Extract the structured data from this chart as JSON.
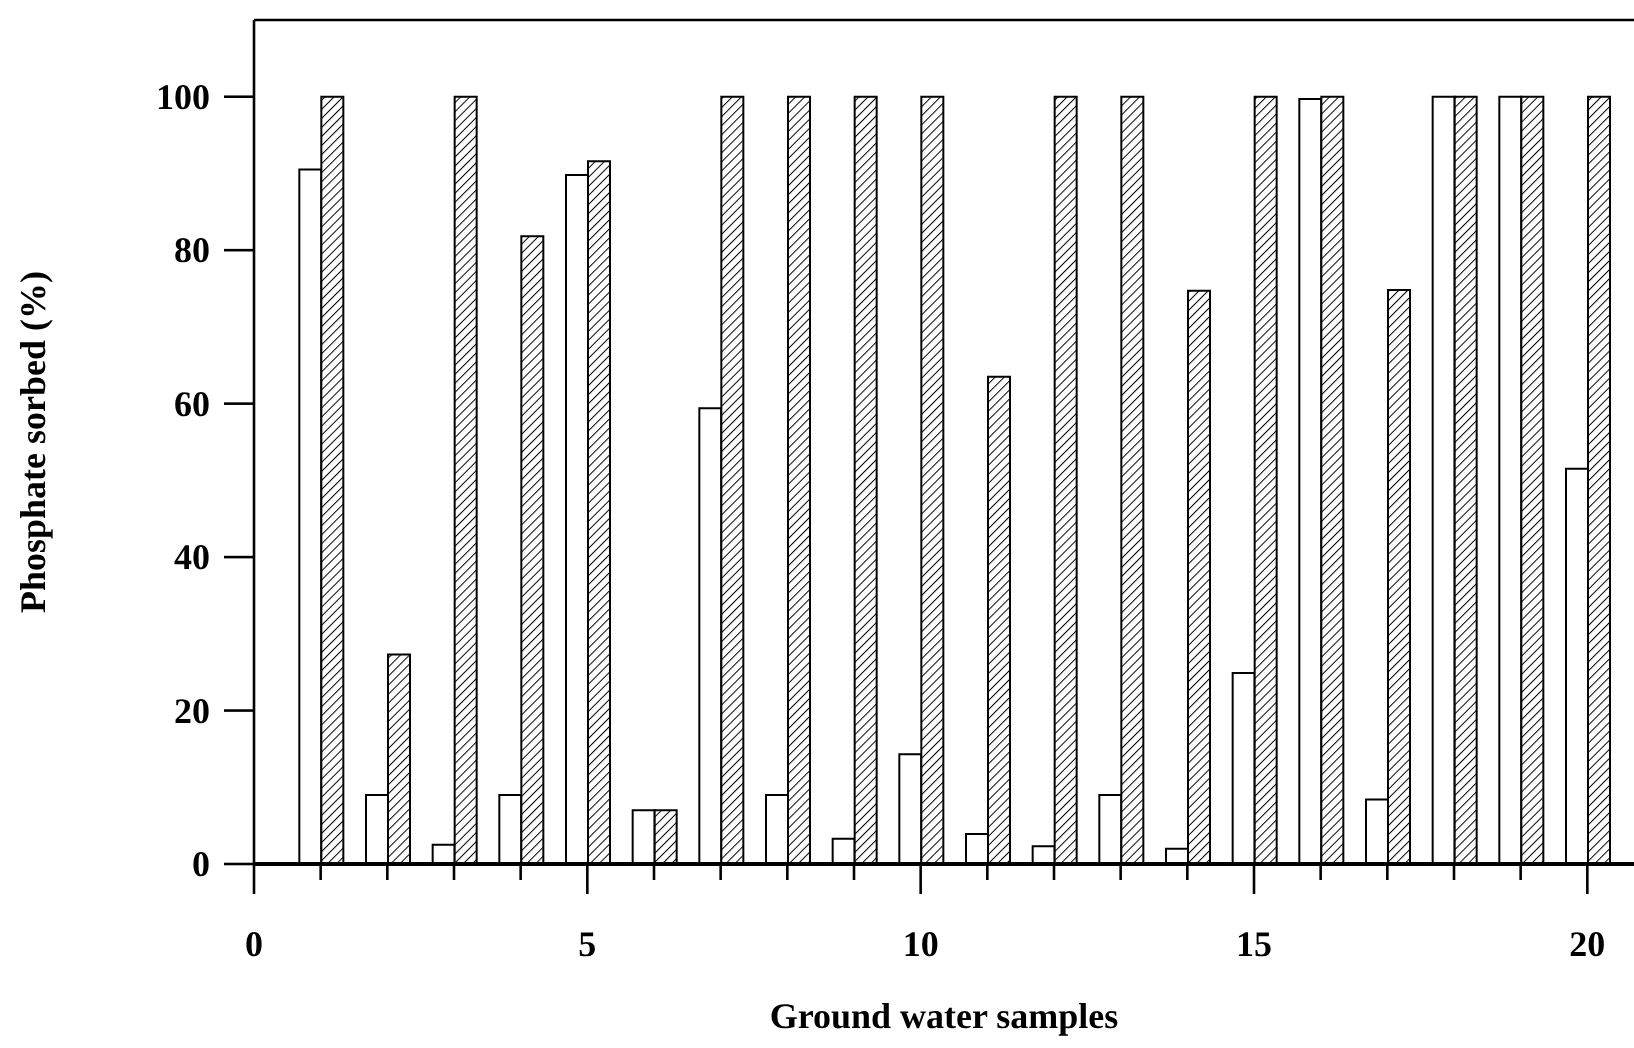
{
  "chart_data": {
    "type": "bar",
    "xlabel": "Ground water samples",
    "ylabel": "Phosphate sorbed (%)",
    "x": [
      1,
      2,
      3,
      4,
      5,
      6,
      7,
      8,
      9,
      10,
      11,
      12,
      13,
      14,
      15,
      16,
      17,
      18,
      19,
      20
    ],
    "series": [
      {
        "color": "#ffffff",
        "values": [
          90.5,
          9,
          2.5,
          9,
          89.8,
          7,
          59.4,
          9,
          3.3,
          14.3,
          3.9,
          2.3,
          9,
          2,
          24.9,
          99.7,
          8.4,
          100,
          100,
          51.5
        ]
      },
      {
        "color": "#000000",
        "values": [
          100,
          27.3,
          100,
          81.8,
          91.6,
          7,
          100,
          100,
          100,
          100,
          63.5,
          100,
          100,
          74.7,
          100,
          100,
          74.8,
          100,
          100,
          100
        ]
      }
    ],
    "xlim": [
      0,
      20.7
    ],
    "ylim": [
      0,
      110
    ],
    "xticks": [
      0,
      {
        "value": 1,
        "label": null
      },
      {
        "value": 2,
        "label": null
      },
      {
        "value": 3,
        "label": null
      },
      {
        "value": 4,
        "label": null
      },
      5,
      {
        "value": 6,
        "label": null
      },
      {
        "value": 7,
        "label": null
      },
      {
        "value": 8,
        "label": null
      },
      {
        "value": 9,
        "label": null
      },
      10,
      {
        "value": 11,
        "label": null
      },
      {
        "value": 12,
        "label": null
      },
      {
        "value": 13,
        "label": null
      },
      {
        "value": 14,
        "label": null
      },
      15,
      {
        "value": 16,
        "label": null
      },
      {
        "value": 17,
        "label": null
      },
      {
        "value": 18,
        "label": null
      },
      {
        "value": 19,
        "label": null
      },
      20
    ],
    "yticks": [
      0,
      20,
      40,
      60,
      80,
      100
    ],
    "grid": false,
    "legend": false
  }
}
